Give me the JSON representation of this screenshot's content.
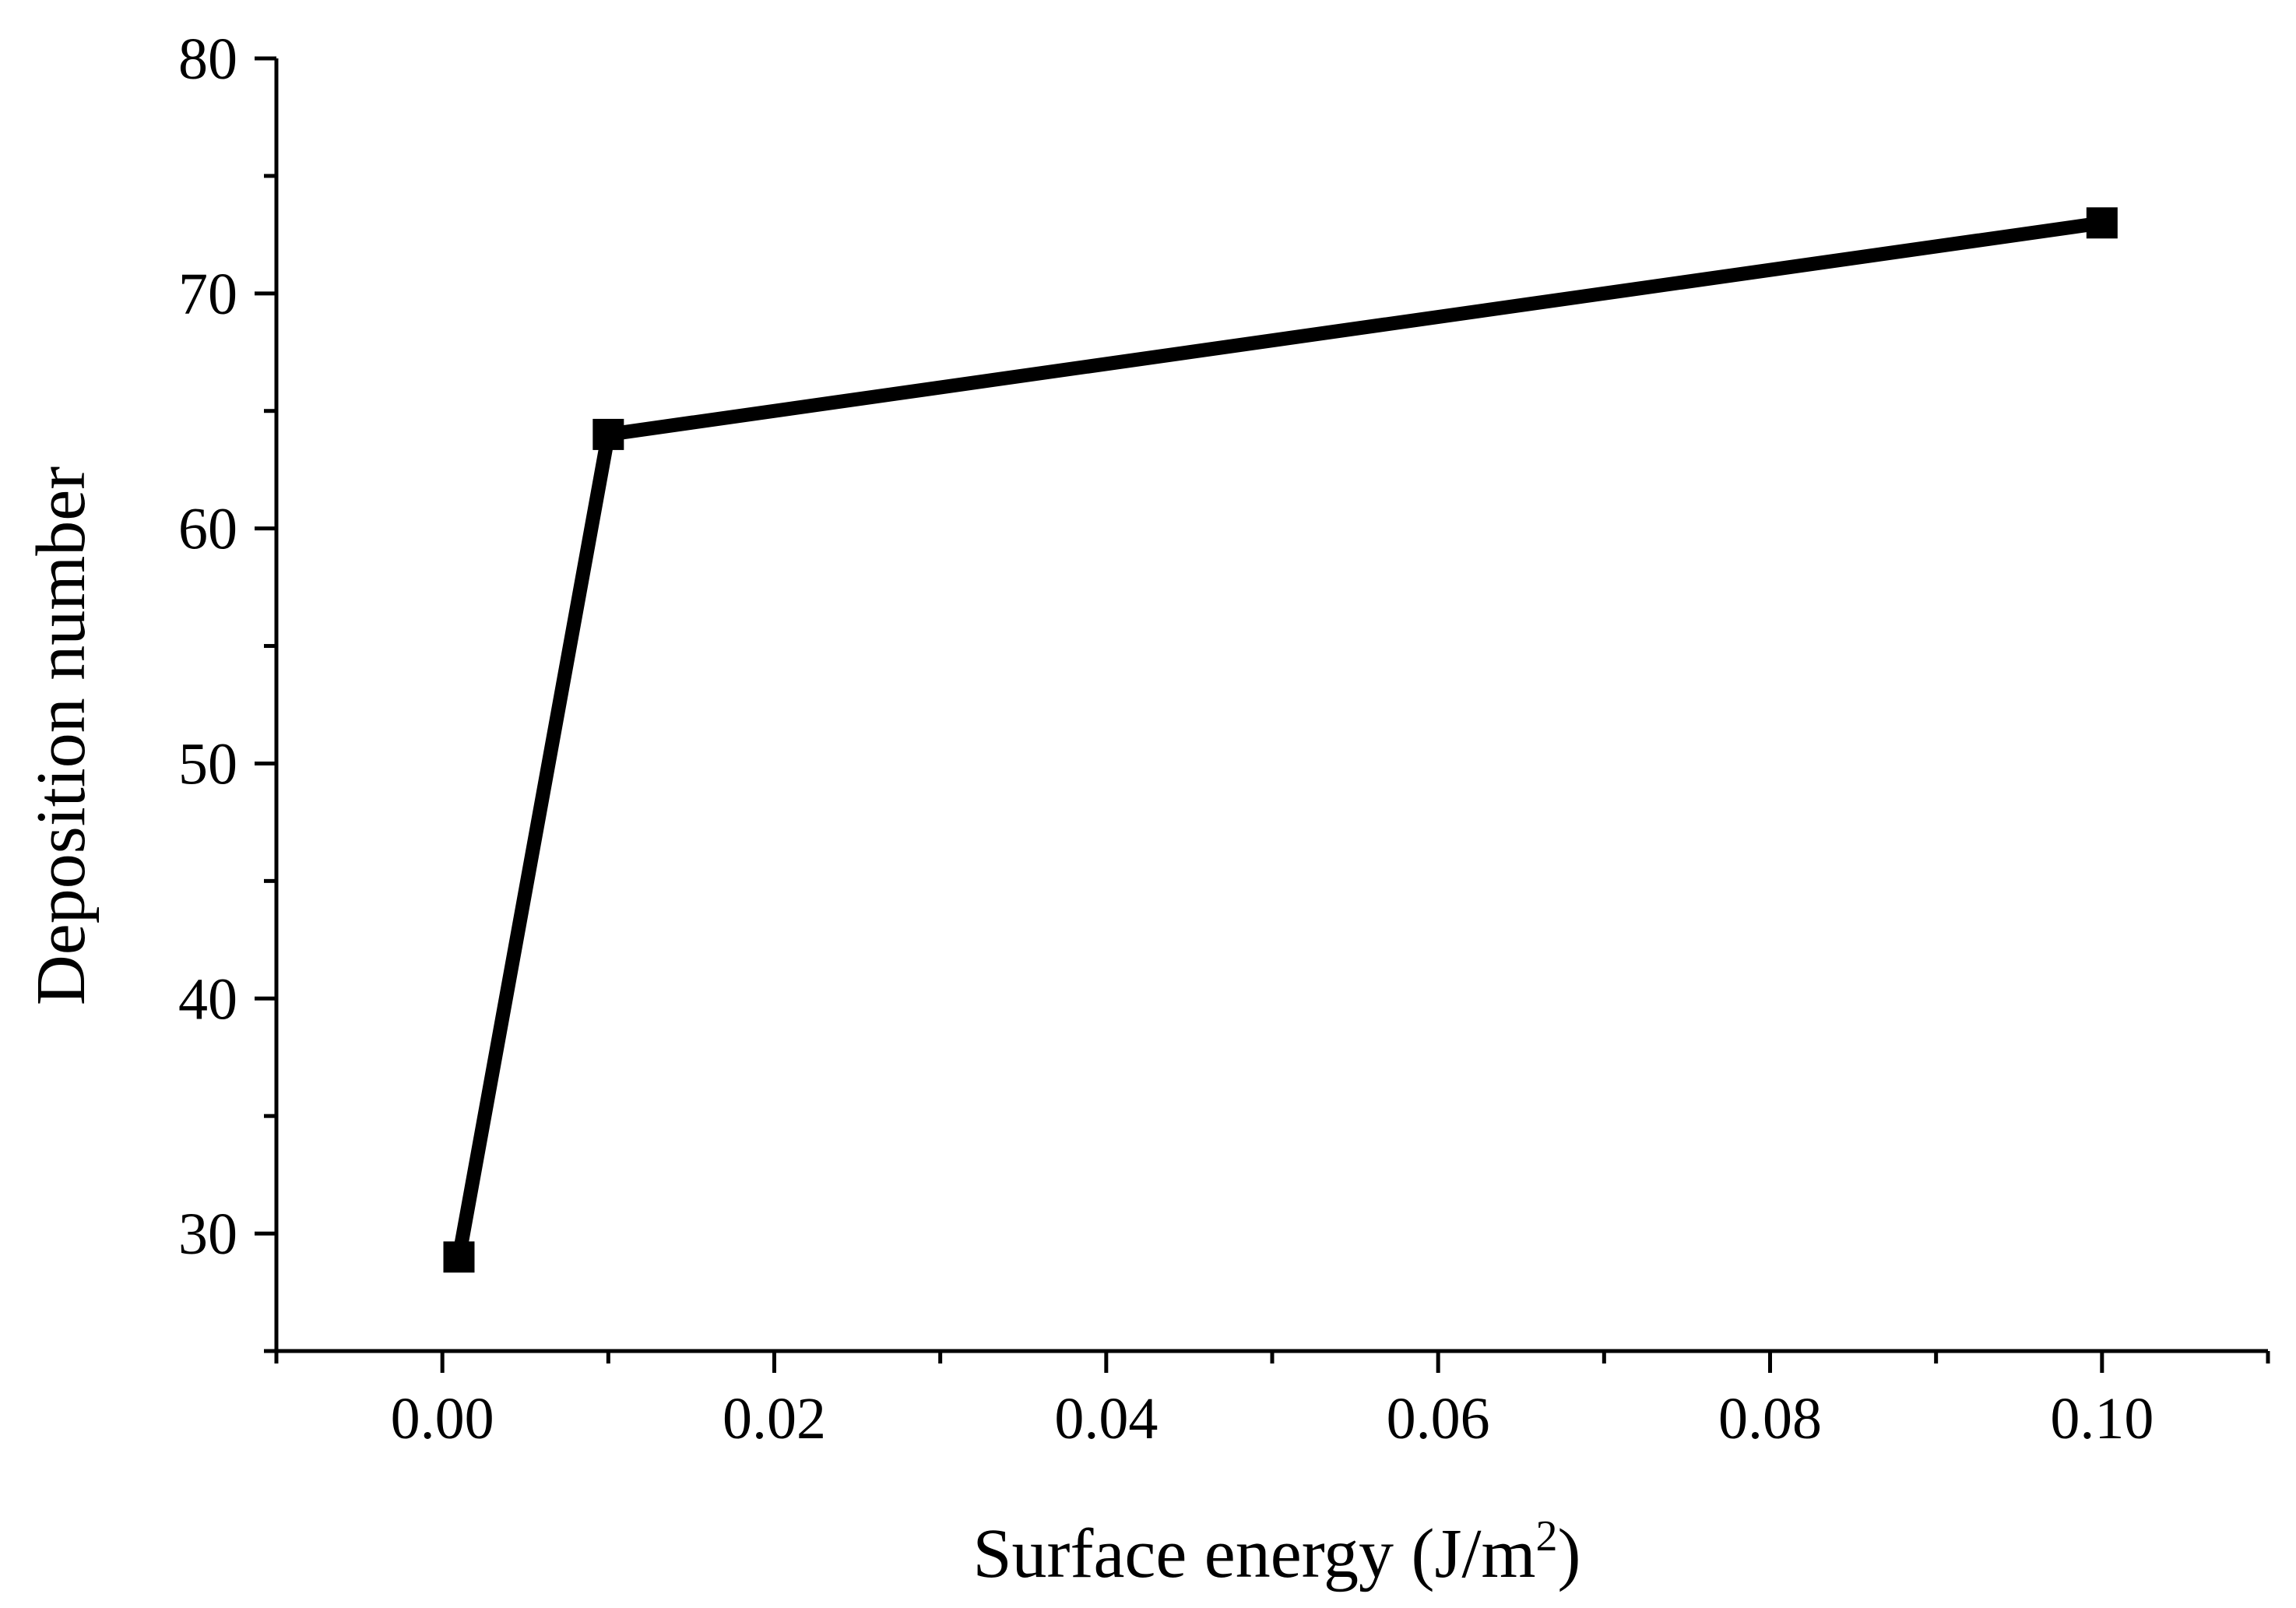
{
  "chart_data": {
    "type": "line",
    "xlabel": "Surface energy (J/m",
    "xlabel_superscript": "2",
    "xlabel_suffix": ")",
    "ylabel": "Deposition number",
    "xlim": [
      -0.01,
      0.11
    ],
    "ylim": [
      25,
      80
    ],
    "x_ticks": [
      "0.00",
      "0.02",
      "0.04",
      "0.06",
      "0.08",
      "0.10"
    ],
    "y_ticks": [
      "30",
      "40",
      "50",
      "60",
      "70",
      "80"
    ],
    "grid": false,
    "series": [
      {
        "x": [
          0.001,
          0.01,
          0.1
        ],
        "values": [
          29,
          64,
          73
        ],
        "color": "#000000",
        "marker": "square"
      }
    ]
  }
}
